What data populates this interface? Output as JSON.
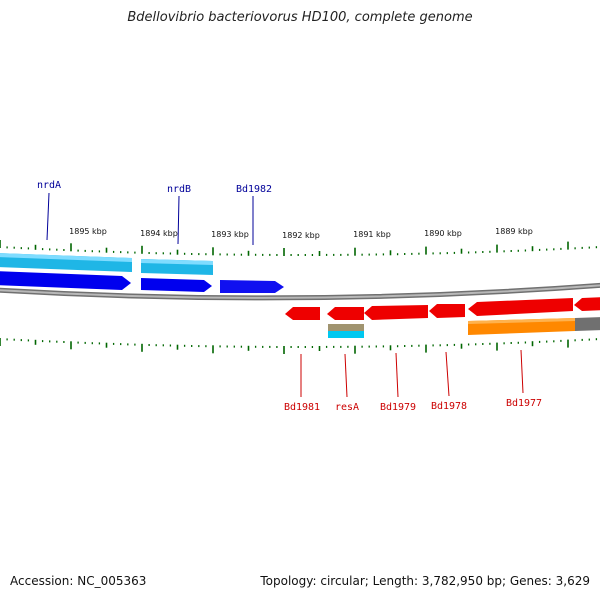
{
  "title": "Bdellovibrio bacteriovorus HD100, complete genome",
  "accession_label": "Accession: NC_005363",
  "summary_label": "Topology: circular; Length: 3,782,950 bp; Genes: 3,629",
  "scale_labels": [
    "1895 kbp",
    "1894 kbp",
    "1893 kbp",
    "1892 kbp",
    "1891 kbp",
    "1890 kbp",
    "1889 kbp"
  ],
  "forward_gene_labels": [
    "nrdA",
    "nrdB",
    "Bd1982"
  ],
  "reverse_gene_labels": [
    "Bd1981",
    "resA",
    "Bd1979",
    "Bd1978",
    "Bd1977"
  ],
  "colors": {
    "forward_cds": "#0000ee",
    "forward_gene": "#00aadd",
    "reverse_cds": "#ee0000",
    "reverse_gene": "#ff8800",
    "backbone": "#8a8a8a",
    "tick": "#006600",
    "forward_label": "#000099",
    "reverse_label": "#cc0000",
    "misc_feature": "#9b8f6e",
    "misc_feature_2": "#00ccff"
  }
}
